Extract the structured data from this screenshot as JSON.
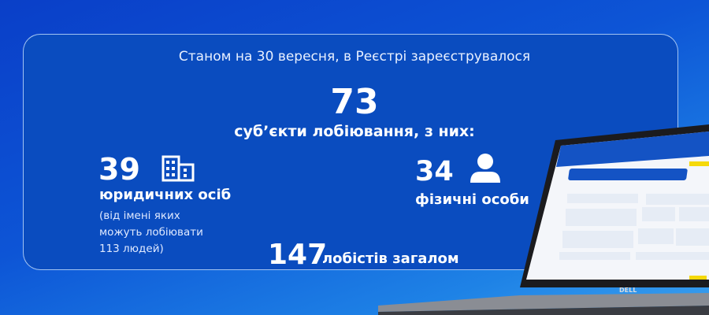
{
  "header": "Станом на 30 вересня, в Реєстрі зареєструвалося",
  "total": {
    "value": "73",
    "label": "суб’єкти лобіювання, з них:"
  },
  "legal": {
    "value": "39",
    "label": "юридичних осіб",
    "note": "(від імені яких можуть лобіювати 113 людей)",
    "icon": "building-icon"
  },
  "individuals": {
    "value": "34",
    "label": "фізичні особи",
    "icon": "person-icon"
  },
  "lobbyists": {
    "value": "147",
    "label": "лобістів загалом"
  },
  "laptop": {
    "brand": "DELL"
  },
  "colors": {
    "background": "#0d55d6",
    "card": "#0a4cbf",
    "text": "#ffffff"
  }
}
